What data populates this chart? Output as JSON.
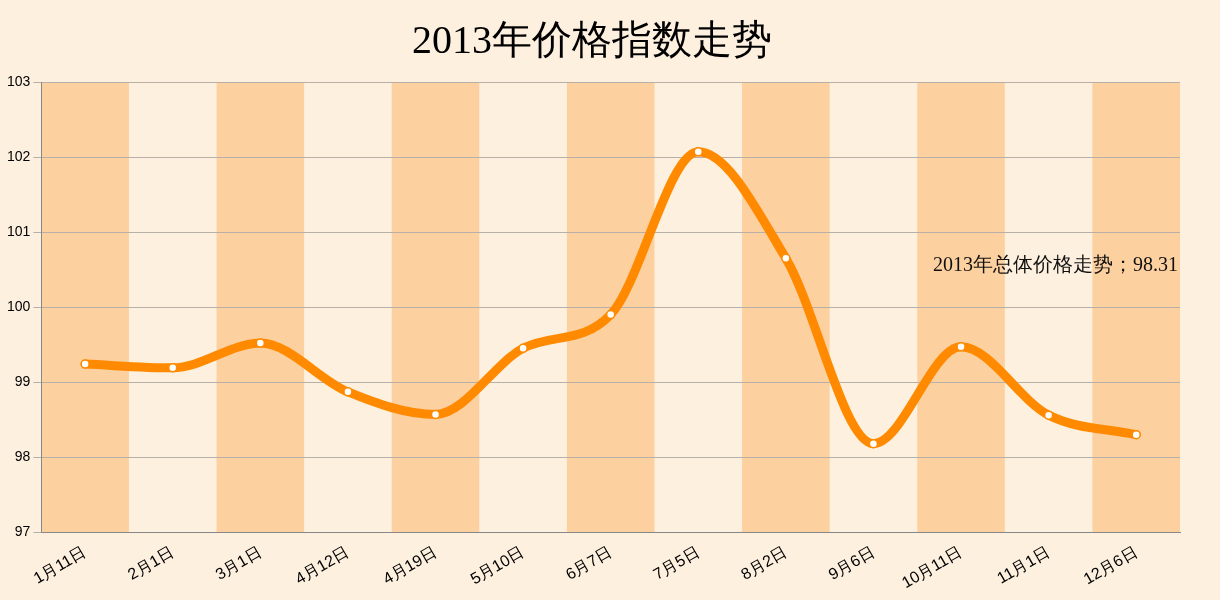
{
  "chart_data": {
    "type": "line",
    "title": "2013年价格指数走势",
    "categories": [
      "1月11日",
      "2月1日",
      "3月1日",
      "4月12日",
      "4月19日",
      "5月10日",
      "6月7日",
      "7月5日",
      "8月2日",
      "9月6日",
      "10月11日",
      "11月1日",
      "12月6日"
    ],
    "series": [
      {
        "color": "#ff8a00",
        "values": [
          99.24,
          99.19,
          99.52,
          98.87,
          98.57,
          99.45,
          99.9,
          102.07,
          100.65,
          98.18,
          99.47,
          98.56,
          98.3
        ]
      }
    ],
    "ylim": [
      97,
      103
    ],
    "yticks": [
      97,
      98,
      99,
      100,
      101,
      102,
      103
    ],
    "grid": "y",
    "legend": false,
    "marker": "circle",
    "line_style": "solid",
    "bands": [
      {
        "axis": "x",
        "from": "1月11日",
        "to": "1月11日",
        "color": "#fdd09f"
      },
      {
        "axis": "x",
        "from": "3月1日",
        "to": "3月1日",
        "color": "#fdd09f"
      },
      {
        "axis": "x",
        "from": "4月19日",
        "to": "4月19日",
        "color": "#fdd09f"
      },
      {
        "axis": "x",
        "from": "6月7日",
        "to": "6月7日",
        "color": "#fdd09f"
      },
      {
        "axis": "x",
        "from": "8月2日",
        "to": "8月2日",
        "color": "#fdd09f"
      },
      {
        "axis": "x",
        "from": "10月11日",
        "to": "10月11日",
        "color": "#fdd09f"
      },
      {
        "axis": "x",
        "from": "12月6日",
        "to": "12月6日",
        "color": "#fdd09f"
      }
    ],
    "annotations": [
      "2013年总体价格走势；98.31"
    ]
  }
}
